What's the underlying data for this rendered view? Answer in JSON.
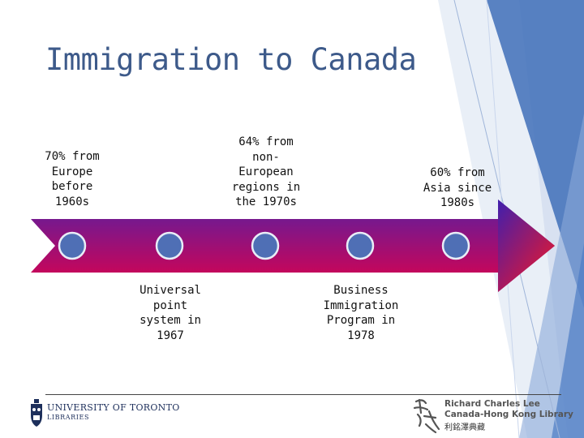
{
  "slide": {
    "title": "Immigration to Canada",
    "accent_color": "#3d5a8a"
  },
  "timeline": {
    "arrow_gradient": [
      "#5a1fa0",
      "#e0004a"
    ],
    "marker_color": "#4f6fb5",
    "labels_above": [
      "70% from\nEurope\nbefore\n1960s",
      "64% from\nnon-\nEuropean\nregions in\nthe 1970s",
      "60% from\nAsia since\n1980s"
    ],
    "labels_below": [
      "Universal\npoint\nsystem in\n1967",
      "Business\nImmigration\nProgram in\n1978"
    ]
  },
  "footer": {
    "uoft_name": "UNIVERSITY OF TORONTO",
    "uoft_libraries": "LIBRARIES",
    "rcl_line1": "Richard Charles Lee",
    "rcl_line2": "Canada-Hong Kong Library",
    "rcl_line3": "利銘澤典藏",
    "uoft_logo_icon": "crest-icon",
    "rcl_logo_icon": "calligraphy-icon"
  }
}
